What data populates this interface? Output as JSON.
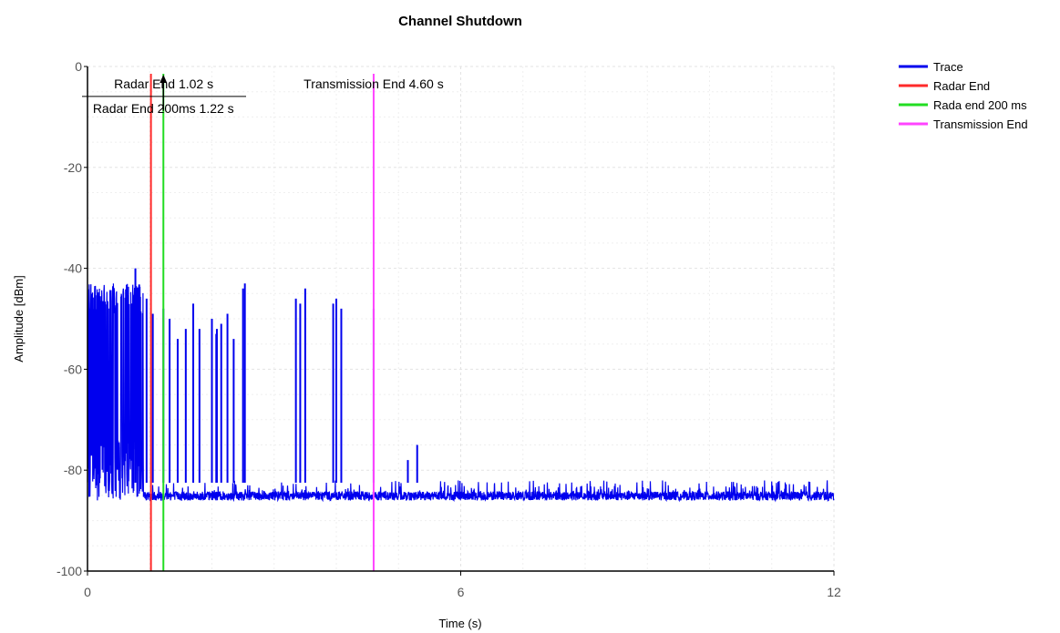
{
  "chart_data": {
    "type": "line",
    "title": "Channel Shutdown",
    "xlabel": "Time (s)",
    "ylabel": "Amplitude [dBm]",
    "xlim": [
      0,
      12
    ],
    "ylim": [
      -100,
      0
    ],
    "x_ticks": [
      0,
      6,
      12
    ],
    "y_ticks": [
      0,
      -20,
      -40,
      -60,
      -80,
      -100
    ],
    "grid": true,
    "legend_position": "top-right",
    "series": [
      {
        "name": "Trace",
        "color": "#0000ee",
        "segments": [
          {
            "x_range": [
              0,
              0.9
            ],
            "min": -86,
            "max": -43,
            "style": "dense-burst"
          },
          {
            "x_range": [
              0.9,
              12
            ],
            "min": -86,
            "max": -82,
            "style": "noise-floor"
          }
        ],
        "spikes": [
          {
            "x": 0.77,
            "y": -40
          },
          {
            "x": 0.95,
            "y": -46
          },
          {
            "x": 1.05,
            "y": -49
          },
          {
            "x": 1.22,
            "y": -48
          },
          {
            "x": 1.32,
            "y": -50
          },
          {
            "x": 1.45,
            "y": -54
          },
          {
            "x": 1.58,
            "y": -52
          },
          {
            "x": 1.7,
            "y": -47
          },
          {
            "x": 1.8,
            "y": -52
          },
          {
            "x": 2.0,
            "y": -50
          },
          {
            "x": 2.07,
            "y": -53
          },
          {
            "x": 2.08,
            "y": -52
          },
          {
            "x": 2.15,
            "y": -51
          },
          {
            "x": 2.25,
            "y": -49
          },
          {
            "x": 2.35,
            "y": -54
          },
          {
            "x": 2.5,
            "y": -44
          },
          {
            "x": 2.53,
            "y": -43
          },
          {
            "x": 3.35,
            "y": -46
          },
          {
            "x": 3.42,
            "y": -47
          },
          {
            "x": 3.5,
            "y": -44
          },
          {
            "x": 3.95,
            "y": -47
          },
          {
            "x": 4.0,
            "y": -46
          },
          {
            "x": 4.08,
            "y": -48
          },
          {
            "x": 4.6,
            "y": -48
          },
          {
            "x": 5.15,
            "y": -78
          },
          {
            "x": 5.3,
            "y": -75
          }
        ]
      },
      {
        "name": "Radar End",
        "color": "#ff2a2a",
        "type": "vline",
        "x": 1.02
      },
      {
        "name": "Rada end 200 ms",
        "color": "#22dd22",
        "type": "vline",
        "x": 1.22
      },
      {
        "name": "Transmission End",
        "color": "#ff44ff",
        "type": "vline",
        "x": 4.6
      }
    ],
    "annotations": [
      {
        "text": "Radar End 1.02 s",
        "x": 1.02,
        "y": -4.3
      },
      {
        "text": "Radar End 200ms 1.22 s",
        "x": 1.22,
        "y": -8.8
      },
      {
        "text": "Transmission End 4.60 s",
        "x": 4.6,
        "y": -4.3
      }
    ]
  }
}
